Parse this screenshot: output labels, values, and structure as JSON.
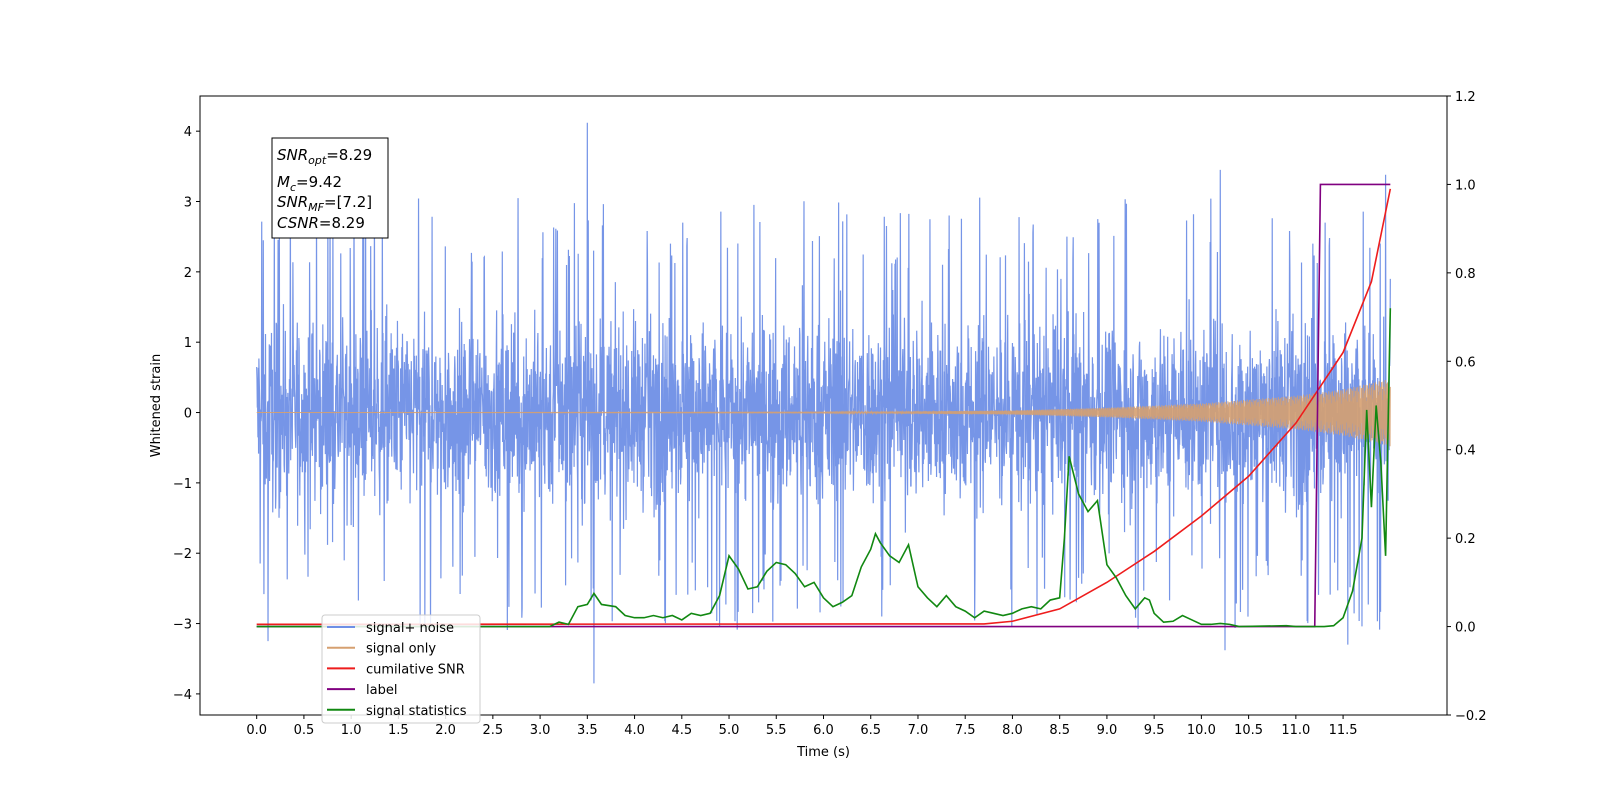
{
  "chart_data": {
    "type": "line",
    "xlabel": "Time (s)",
    "ylabel": "Whitened strain",
    "xlim": [
      -0.6,
      12.6
    ],
    "ylim": [
      -4.3,
      4.5
    ],
    "y2lim": [
      -0.2,
      1.2
    ],
    "x_ticks": [
      0.0,
      0.5,
      1.0,
      1.5,
      2.0,
      2.5,
      3.0,
      3.5,
      4.0,
      4.5,
      5.0,
      5.5,
      6.0,
      6.5,
      7.0,
      7.5,
      8.0,
      8.5,
      9.0,
      9.5,
      10.0,
      10.5,
      11.0,
      11.5
    ],
    "x_tick_labels": [
      "0.0",
      "0.5",
      "1.0",
      "1.5",
      "2.0",
      "2.5",
      "3.0",
      "3.5",
      "4.0",
      "4.5",
      "5.0",
      "5.5",
      "6.0",
      "6.5",
      "7.0",
      "7.5",
      "8.0",
      "8.5",
      "9.0",
      "9.5",
      "10.0",
      "10.5",
      "11.0",
      "11.5"
    ],
    "y_ticks": [
      -4,
      -3,
      -2,
      -1,
      0,
      1,
      2,
      3,
      4
    ],
    "y_tick_labels": [
      "−4",
      "−3",
      "−2",
      "−1",
      "0",
      "1",
      "2",
      "3",
      "4"
    ],
    "y2_ticks": [
      -0.2,
      0.0,
      0.2,
      0.4,
      0.6,
      0.8,
      1.0,
      1.2
    ],
    "y2_tick_labels": [
      "−0.2",
      "0.0",
      "0.2",
      "0.4",
      "0.6",
      "0.8",
      "1.0",
      "1.2"
    ],
    "annotation": {
      "snr_opt_label": "SNR",
      "snr_opt_sub": "opt",
      "snr_opt_value": "=8.29",
      "mc_label": "M",
      "mc_sub": "c",
      "mc_value": "=9.42",
      "snr_mf_label": "SNR",
      "snr_mf_sub": "MF",
      "snr_mf_value": "=[7.2]",
      "csnr_label": "CSNR",
      "csnr_value": "=8.29"
    },
    "legend_placement": "lower-left",
    "series": [
      {
        "name": "signal+ noise",
        "axis": "left",
        "color": "#6f8fe6",
        "kind": "noise",
        "t_range": [
          0.0,
          12.0
        ],
        "envelope_top": 2.5,
        "envelope_bottom": -2.5,
        "outlier_peaks": [
          [
            0.07,
            2.45
          ],
          [
            0.12,
            -3.25
          ],
          [
            3.5,
            4.12
          ],
          [
            3.57,
            -3.85
          ],
          [
            10.2,
            3.45
          ],
          [
            10.25,
            -3.38
          ],
          [
            11.55,
            -3.3
          ],
          [
            11.95,
            3.38
          ],
          [
            12.0,
            1.9
          ]
        ]
      },
      {
        "name": "signal only",
        "axis": "left",
        "color": "#d6a070",
        "kind": "chirp",
        "t_range": [
          0.0,
          12.0
        ],
        "amplitude_points": [
          [
            0.0,
            0.0
          ],
          [
            6.0,
            0.005
          ],
          [
            8.0,
            0.03
          ],
          [
            9.0,
            0.07
          ],
          [
            10.0,
            0.13
          ],
          [
            11.0,
            0.24
          ],
          [
            11.5,
            0.33
          ],
          [
            12.0,
            0.48
          ]
        ]
      },
      {
        "name": "cumilative SNR",
        "axis": "right",
        "color": "#ee1c1c",
        "kind": "line",
        "points": [
          [
            0.0,
            0.005
          ],
          [
            7.7,
            0.006
          ],
          [
            8.0,
            0.012
          ],
          [
            8.5,
            0.04
          ],
          [
            9.0,
            0.1
          ],
          [
            9.5,
            0.17
          ],
          [
            10.0,
            0.25
          ],
          [
            10.5,
            0.34
          ],
          [
            11.0,
            0.46
          ],
          [
            11.5,
            0.62
          ],
          [
            11.8,
            0.78
          ],
          [
            12.0,
            0.99
          ]
        ]
      },
      {
        "name": "label",
        "axis": "right",
        "color": "#800080",
        "kind": "line",
        "points": [
          [
            0.0,
            0.0
          ],
          [
            11.2,
            0.0
          ],
          [
            11.26,
            1.0
          ],
          [
            12.0,
            1.0
          ]
        ]
      },
      {
        "name": "signal statistics",
        "axis": "right",
        "color": "#118811",
        "kind": "line",
        "points": [
          [
            0.0,
            0.0
          ],
          [
            3.1,
            0.0
          ],
          [
            3.2,
            0.01
          ],
          [
            3.3,
            0.005
          ],
          [
            3.4,
            0.045
          ],
          [
            3.5,
            0.05
          ],
          [
            3.57,
            0.075
          ],
          [
            3.65,
            0.05
          ],
          [
            3.8,
            0.045
          ],
          [
            3.9,
            0.025
          ],
          [
            4.0,
            0.02
          ],
          [
            4.1,
            0.02
          ],
          [
            4.2,
            0.025
          ],
          [
            4.3,
            0.02
          ],
          [
            4.4,
            0.025
          ],
          [
            4.5,
            0.015
          ],
          [
            4.6,
            0.03
          ],
          [
            4.7,
            0.025
          ],
          [
            4.8,
            0.03
          ],
          [
            4.9,
            0.07
          ],
          [
            5.0,
            0.16
          ],
          [
            5.1,
            0.13
          ],
          [
            5.2,
            0.085
          ],
          [
            5.3,
            0.09
          ],
          [
            5.4,
            0.125
          ],
          [
            5.5,
            0.145
          ],
          [
            5.6,
            0.14
          ],
          [
            5.7,
            0.12
          ],
          [
            5.8,
            0.09
          ],
          [
            5.9,
            0.1
          ],
          [
            6.0,
            0.065
          ],
          [
            6.1,
            0.045
          ],
          [
            6.2,
            0.055
          ],
          [
            6.3,
            0.07
          ],
          [
            6.4,
            0.135
          ],
          [
            6.5,
            0.175
          ],
          [
            6.55,
            0.21
          ],
          [
            6.6,
            0.19
          ],
          [
            6.7,
            0.16
          ],
          [
            6.8,
            0.145
          ],
          [
            6.9,
            0.185
          ],
          [
            7.0,
            0.09
          ],
          [
            7.1,
            0.065
          ],
          [
            7.2,
            0.045
          ],
          [
            7.3,
            0.07
          ],
          [
            7.4,
            0.045
          ],
          [
            7.5,
            0.035
          ],
          [
            7.6,
            0.02
          ],
          [
            7.7,
            0.035
          ],
          [
            7.8,
            0.03
          ],
          [
            7.9,
            0.025
          ],
          [
            8.0,
            0.03
          ],
          [
            8.1,
            0.04
          ],
          [
            8.2,
            0.045
          ],
          [
            8.3,
            0.04
          ],
          [
            8.4,
            0.06
          ],
          [
            8.5,
            0.065
          ],
          [
            8.55,
            0.2
          ],
          [
            8.6,
            0.385
          ],
          [
            8.7,
            0.3
          ],
          [
            8.8,
            0.26
          ],
          [
            8.9,
            0.285
          ],
          [
            9.0,
            0.14
          ],
          [
            9.1,
            0.11
          ],
          [
            9.2,
            0.07
          ],
          [
            9.3,
            0.04
          ],
          [
            9.4,
            0.065
          ],
          [
            9.45,
            0.06
          ],
          [
            9.5,
            0.03
          ],
          [
            9.6,
            0.01
          ],
          [
            9.7,
            0.012
          ],
          [
            9.8,
            0.025
          ],
          [
            9.9,
            0.015
          ],
          [
            10.0,
            0.005
          ],
          [
            10.1,
            0.005
          ],
          [
            10.2,
            0.007
          ],
          [
            10.3,
            0.005
          ],
          [
            10.4,
            0.0
          ],
          [
            10.9,
            0.002
          ],
          [
            11.0,
            0.0
          ],
          [
            11.2,
            0.0
          ],
          [
            11.3,
            0.0
          ],
          [
            11.4,
            0.002
          ],
          [
            11.5,
            0.02
          ],
          [
            11.6,
            0.08
          ],
          [
            11.7,
            0.2
          ],
          [
            11.75,
            0.49
          ],
          [
            11.8,
            0.27
          ],
          [
            11.85,
            0.5
          ],
          [
            11.9,
            0.37
          ],
          [
            11.95,
            0.16
          ],
          [
            12.0,
            0.72
          ]
        ]
      }
    ]
  }
}
